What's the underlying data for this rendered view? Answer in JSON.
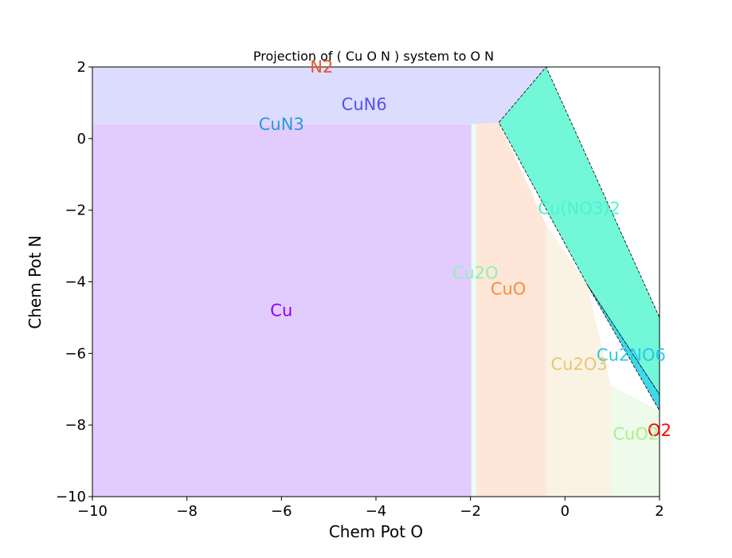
{
  "chart_data": {
    "type": "phase_diagram",
    "title": "Projection of ( Cu O N ) system to O N",
    "xlabel": "Chem Pot O",
    "ylabel": "Chem Pot N",
    "xlim": [
      -10,
      2
    ],
    "ylim": [
      -10,
      2
    ],
    "xticks": [
      -10,
      -8,
      -6,
      -4,
      -2,
      0,
      2
    ],
    "yticks": [
      -10,
      -8,
      -6,
      -4,
      -2,
      0,
      2
    ],
    "xtick_labels": [
      "−10",
      "−8",
      "−6",
      "−4",
      "−2",
      "0",
      "2"
    ],
    "ytick_labels": [
      "−10",
      "−8",
      "−6",
      "−4",
      "−2",
      "0",
      "2"
    ],
    "grid": false,
    "regions": [
      {
        "name": "CuN6",
        "color": "#dcdcff",
        "outline": false,
        "polygon": [
          [
            -10,
            0.4
          ],
          [
            -10,
            2
          ],
          [
            -0.4,
            2
          ],
          [
            -1.4,
            0.45
          ],
          [
            -1.9,
            0.4
          ]
        ]
      },
      {
        "name": "CuN3",
        "color": "#e6f5ff",
        "outline": false,
        "polygon": [
          [
            -10,
            0.39
          ],
          [
            -1.9,
            0.39
          ],
          [
            -1.9,
            0.41
          ],
          [
            -10,
            0.41
          ]
        ]
      },
      {
        "name": "Cu",
        "color": "#e2ccfe",
        "outline": false,
        "polygon": [
          [
            -10,
            -10
          ],
          [
            -1.98,
            -10
          ],
          [
            -1.98,
            0.4
          ],
          [
            -10,
            0.4
          ]
        ]
      },
      {
        "name": "Cu2O",
        "color": "#e8fff4",
        "outline": false,
        "polygon": [
          [
            -1.98,
            -10
          ],
          [
            -1.88,
            -10
          ],
          [
            -1.88,
            0.4
          ],
          [
            -1.98,
            0.4
          ]
        ]
      },
      {
        "name": "CuO",
        "color": "#fee6d8",
        "outline": false,
        "polygon": [
          [
            -1.88,
            -10
          ],
          [
            -0.4,
            -10
          ],
          [
            -0.4,
            -2.4
          ],
          [
            -1.4,
            0.45
          ],
          [
            -1.88,
            0.4
          ]
        ]
      },
      {
        "name": "Cu2O3",
        "color": "#faf2e2",
        "outline": false,
        "polygon": [
          [
            -0.4,
            -10
          ],
          [
            0.97,
            -10
          ],
          [
            0.97,
            -6.9
          ],
          [
            0.48,
            -4.1
          ],
          [
            -0.4,
            -2.4
          ]
        ]
      },
      {
        "name": "CuO2",
        "color": "#eefaea",
        "outline": false,
        "polygon": [
          [
            0.97,
            -10
          ],
          [
            2,
            -10
          ],
          [
            2,
            -7.6
          ],
          [
            0.97,
            -6.9
          ]
        ]
      },
      {
        "name": "Cu(NO3)2",
        "color": "#72f7d8",
        "outline": true,
        "polygon": [
          [
            -1.4,
            0.45
          ],
          [
            -0.4,
            2
          ],
          [
            2,
            -5.0
          ],
          [
            2,
            -7.15
          ],
          [
            0.48,
            -4.1
          ]
        ]
      },
      {
        "name": "Cu2NO6",
        "color": "#40d8ec",
        "outline": true,
        "polygon": [
          [
            0.48,
            -4.1
          ],
          [
            2,
            -7.15
          ],
          [
            2,
            -7.6
          ]
        ]
      }
    ],
    "labels": [
      {
        "text": "N2",
        "x": -5.15,
        "y": 2.0,
        "color": "#f05028"
      },
      {
        "text": "CuN6",
        "x": -4.25,
        "y": 0.95,
        "color": "#5252f0"
      },
      {
        "text": "CuN3",
        "x": -6.0,
        "y": 0.4,
        "color": "#2898e0"
      },
      {
        "text": "Cu(NO3)2",
        "x": 0.3,
        "y": -1.95,
        "color": "#4df3cc"
      },
      {
        "text": "Cu2O",
        "x": -1.9,
        "y": -3.75,
        "color": "#8ef2b4"
      },
      {
        "text": "CuO",
        "x": -1.2,
        "y": -4.2,
        "color": "#fa8c3c"
      },
      {
        "text": "Cu",
        "x": -6.0,
        "y": -4.8,
        "color": "#8c00ff"
      },
      {
        "text": "Cu2NO6",
        "x": 1.4,
        "y": -6.05,
        "color": "#28c8e8"
      },
      {
        "text": "Cu2O3",
        "x": 0.3,
        "y": -6.3,
        "color": "#e6c878"
      },
      {
        "text": "O2",
        "x": 2.0,
        "y": -8.15,
        "color": "#ff0000"
      },
      {
        "text": "CuO2",
        "x": 1.5,
        "y": -8.25,
        "color": "#aaf08c"
      }
    ]
  }
}
